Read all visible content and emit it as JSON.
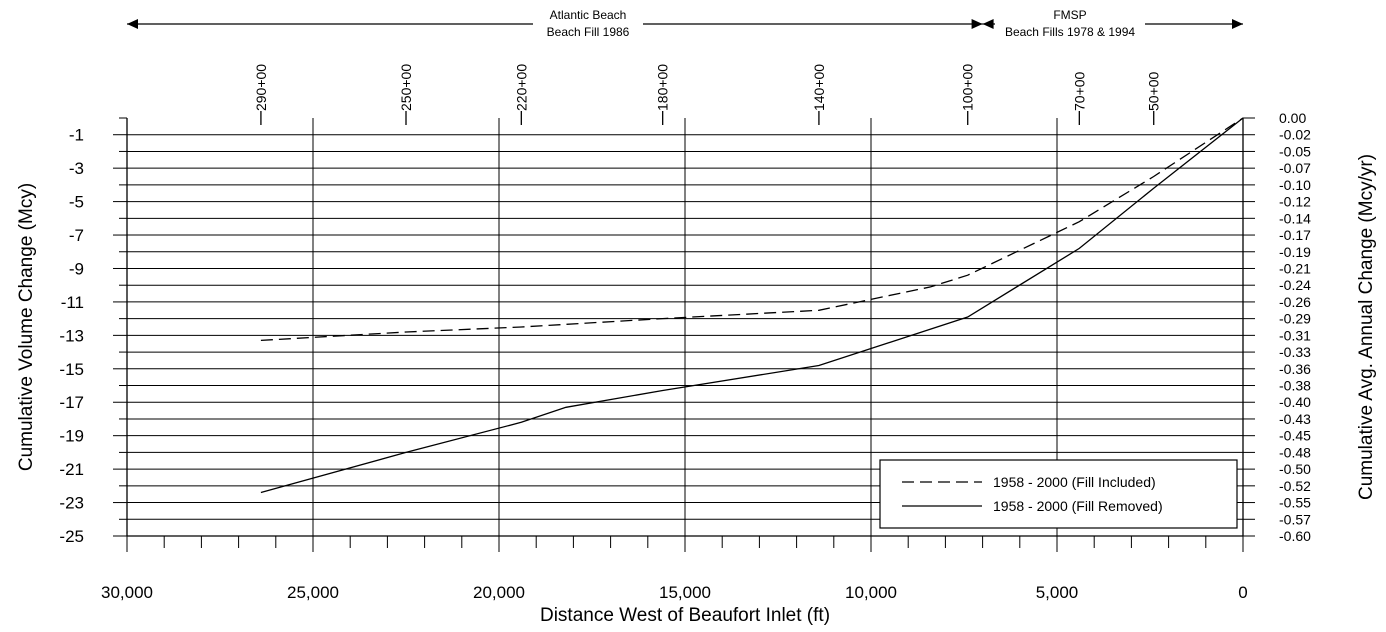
{
  "chart_data": {
    "type": "line",
    "xlabel": "Distance West of Beaufort Inlet (ft)",
    "ylabel": "Cumulative Volume Change (Mcy)",
    "ylabel_right": "Cumulative Avg. Annual Change (Mcy/yr)",
    "xlim": [
      30000,
      0
    ],
    "ylim": [
      -25,
      0
    ],
    "x_ticks": [
      30000,
      25000,
      20000,
      15000,
      10000,
      5000,
      0
    ],
    "x_tick_labels": [
      "30,000",
      "25,000",
      "20,000",
      "15,000",
      "10,000",
      "5,000",
      "0"
    ],
    "y_ticks": [
      -1,
      -3,
      -5,
      -7,
      -9,
      -11,
      -13,
      -15,
      -17,
      -19,
      -21,
      -23,
      -25
    ],
    "y_tick_labels": [
      "-1",
      "-3",
      "-5",
      "-7",
      "-9",
      "-11",
      "-13",
      "-15",
      "-17",
      "-19",
      "-21",
      "-23",
      "-25"
    ],
    "right_ticks": [
      "0.00",
      "-0.02",
      "-0.05",
      "-0.07",
      "-0.10",
      "-0.12",
      "-0.14",
      "-0.17",
      "-0.19",
      "-0.21",
      "-0.24",
      "-0.26",
      "-0.29",
      "-0.31",
      "-0.33",
      "-0.36",
      "-0.38",
      "-0.40",
      "-0.43",
      "-0.45",
      "-0.48",
      "-0.50",
      "-0.52",
      "-0.55",
      "-0.57",
      "-0.60"
    ],
    "stations": [
      {
        "label": "290+00",
        "x": 26400
      },
      {
        "label": "250+00",
        "x": 22500
      },
      {
        "label": "220+00",
        "x": 19400
      },
      {
        "label": "180+00",
        "x": 15600
      },
      {
        "label": "140+00",
        "x": 11400
      },
      {
        "label": "100+00",
        "x": 7400
      },
      {
        "label": "70+00",
        "x": 4400
      },
      {
        "label": "50+00",
        "x": 2400
      }
    ],
    "regions": [
      {
        "line1": "Atlantic Beach",
        "line2": "Beach Fill 1986",
        "x_start": 30000,
        "x_end": 7000
      },
      {
        "line1": "FMSP",
        "line2": "Beach Fills 1978 & 1994",
        "x_start": 7000,
        "x_end": 0
      }
    ],
    "grid": true,
    "legend_position": "bottom-right",
    "series": [
      {
        "name": "1958 - 2000 (Fill Included)",
        "style": "dashed",
        "x": [
          26400,
          22500,
          19400,
          15600,
          11400,
          8400,
          7400,
          4400,
          2400,
          0
        ],
        "y": [
          -13.3,
          -12.8,
          -12.5,
          -12.0,
          -11.5,
          -10.1,
          -9.4,
          -6.2,
          -3.5,
          0.0
        ]
      },
      {
        "name": "1958 - 2000 (Fill Removed)",
        "style": "solid",
        "x": [
          26400,
          22500,
          19400,
          18200,
          15600,
          11400,
          7400,
          4400,
          2400,
          0
        ],
        "y": [
          -22.4,
          -20.0,
          -18.2,
          -17.3,
          -16.3,
          -14.8,
          -11.9,
          -7.8,
          -4.2,
          0.0
        ]
      }
    ]
  }
}
